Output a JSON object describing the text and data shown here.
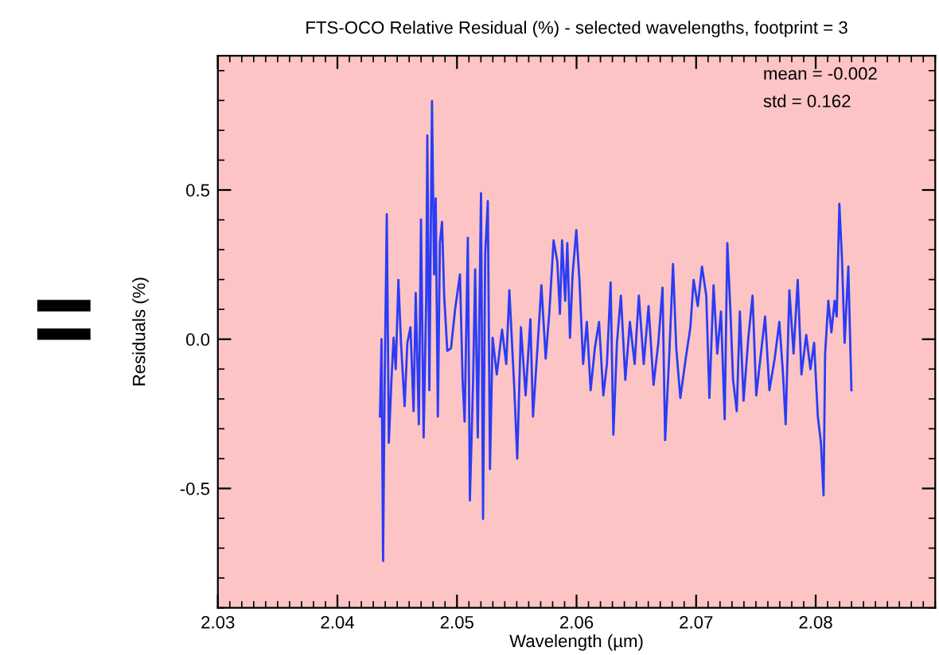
{
  "chart_data": {
    "type": "line",
    "title": "FTS-OCO Relative Residual (%) - selected wavelengths, footprint = 3",
    "xlabel": "Wavelength (µm)",
    "ylabel": "Residuals (%)",
    "xlim": [
      2.03,
      2.09
    ],
    "xticks": [
      2.03,
      2.04,
      2.05,
      2.06,
      2.07,
      2.08
    ],
    "ylim": [
      -0.9,
      0.95
    ],
    "yticks": [
      -0.5,
      {
        "value": 0,
        "label": "0.0"
      },
      0.5
    ],
    "grid": false,
    "legend": false,
    "marker": "none",
    "line_style": "solid",
    "annotations": [
      "mean = -0.002",
      "std = 0.162",
      "="
    ],
    "series": [
      {
        "color": "#2a3cf5",
        "x": [
          2.04356,
          2.04369,
          2.04382,
          2.04395,
          2.04413,
          2.0443,
          2.04452,
          2.0447,
          2.04488,
          2.0451,
          2.04532,
          2.04562,
          2.04585,
          2.04611,
          2.04637,
          2.04655,
          2.04681,
          2.04699,
          2.04721,
          2.04743,
          2.04752,
          2.04769,
          2.04791,
          2.04809,
          2.04822,
          2.0484,
          2.04857,
          2.04875,
          2.04893,
          2.04919,
          2.0495,
          2.04985,
          2.05025,
          2.05047,
          2.05064,
          2.05091,
          2.05108,
          2.05135,
          2.05152,
          2.05174,
          2.05201,
          2.05218,
          2.05236,
          2.05258,
          2.05276,
          2.05298,
          2.05333,
          2.05377,
          2.05412,
          2.05438,
          2.05478,
          2.05504,
          2.05535,
          2.05574,
          2.05614,
          2.05636,
          2.05676,
          2.05706,
          2.05742,
          2.05773,
          2.05808,
          2.05839,
          2.05861,
          2.05879,
          2.05905,
          2.05923,
          2.05945,
          2.05967,
          2.05998,
          2.06024,
          2.06055,
          2.06086,
          2.06118,
          2.06153,
          2.06188,
          2.06224,
          2.06254,
          2.06285,
          2.06308,
          2.06338,
          2.06371,
          2.06408,
          2.06446,
          2.06486,
          2.06521,
          2.06562,
          2.06602,
          2.06644,
          2.06684,
          2.06719,
          2.06741,
          2.06777,
          2.06807,
          2.06834,
          2.06868,
          2.06913,
          2.06952,
          2.06979,
          2.07014,
          2.07049,
          2.07085,
          2.07111,
          2.07146,
          2.07177,
          2.07208,
          2.07239,
          2.07261,
          2.07287,
          2.07309,
          2.0734,
          2.07366,
          2.07397,
          2.07437,
          2.07472,
          2.07503,
          2.07542,
          2.07577,
          2.07613,
          2.07657,
          2.07696,
          2.07727,
          2.07749,
          2.0778,
          2.07815,
          2.0785,
          2.07881,
          2.07921,
          2.07956,
          2.07987,
          2.08018,
          2.08044,
          2.08066,
          2.08079,
          2.08106,
          2.08132,
          2.08158,
          2.08176,
          2.08198,
          2.0822,
          2.08242,
          2.08273,
          2.08299
        ],
        "values": [
          -0.259,
          0.0,
          -0.743,
          -0.153,
          0.419,
          -0.347,
          -0.136,
          0.005,
          -0.1,
          0.199,
          -0.012,
          -0.224,
          -0.012,
          0.04,
          -0.241,
          0.155,
          -0.285,
          0.401,
          -0.329,
          0.146,
          0.683,
          -0.171,
          0.798,
          0.217,
          0.472,
          -0.259,
          0.322,
          0.393,
          0.146,
          -0.039,
          -0.03,
          0.102,
          0.217,
          -0.136,
          -0.276,
          0.34,
          -0.54,
          -0.136,
          0.234,
          -0.329,
          0.489,
          -0.602,
          0.287,
          0.463,
          -0.435,
          0.005,
          -0.118,
          0.032,
          -0.083,
          0.164,
          -0.153,
          -0.4,
          0.04,
          -0.188,
          0.067,
          -0.259,
          -0.012,
          0.181,
          -0.065,
          0.093,
          0.331,
          0.261,
          0.085,
          0.331,
          0.129,
          0.322,
          0.005,
          0.217,
          0.366,
          0.199,
          -0.083,
          0.058,
          -0.171,
          -0.03,
          0.058,
          -0.188,
          -0.083,
          0.19,
          -0.32,
          -0.012,
          0.146,
          -0.136,
          0.058,
          -0.083,
          0.146,
          -0.083,
          0.111,
          -0.153,
          -0.012,
          0.173,
          -0.338,
          -0.039,
          0.252,
          -0.03,
          -0.197,
          -0.065,
          0.04,
          0.199,
          0.111,
          0.243,
          0.146,
          -0.197,
          0.181,
          -0.048,
          0.093,
          -0.268,
          0.322,
          0.093,
          -0.136,
          -0.241,
          0.093,
          -0.206,
          0.005,
          0.146,
          -0.188,
          -0.048,
          0.076,
          -0.171,
          -0.065,
          0.058,
          -0.118,
          -0.285,
          0.164,
          -0.048,
          0.199,
          -0.118,
          0.014,
          -0.1,
          -0.012,
          -0.259,
          -0.347,
          -0.523,
          -0.048,
          0.129,
          0.023,
          0.129,
          0.076,
          0.454,
          0.269,
          -0.012,
          0.243,
          -0.171
        ]
      }
    ]
  }
}
